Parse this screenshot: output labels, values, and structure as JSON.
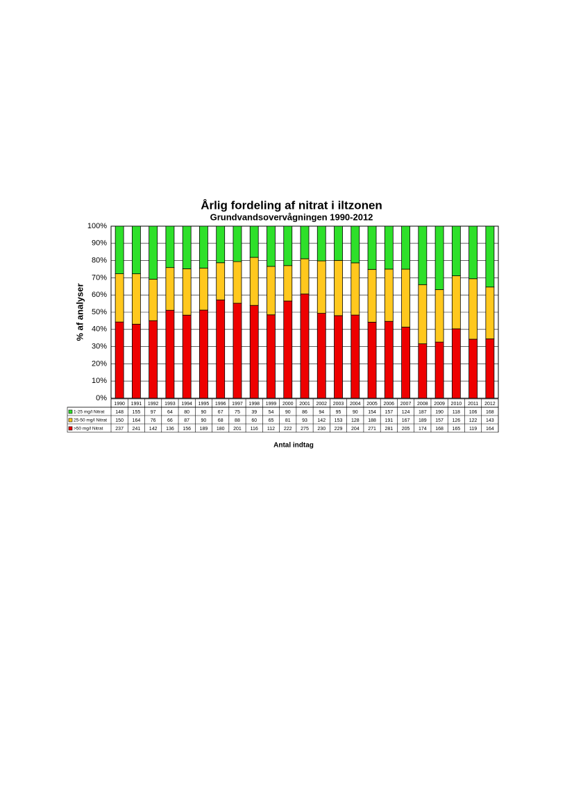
{
  "chart_data": {
    "type": "bar",
    "stacked": "percent",
    "title": "Årlig fordeling af nitrat i iltzonen",
    "subtitle": "Grundvandsovervågningen 1990-2012",
    "y_label": "% af analyser",
    "x_label": "Antal indtag",
    "categories": [
      "1990",
      "1991",
      "1992",
      "1993",
      "1994",
      "1995",
      "1996",
      "1997",
      "1998",
      "1999",
      "2000",
      "2001",
      "2002",
      "2003",
      "2004",
      "2005",
      "2006",
      "2007",
      "2008",
      "2009",
      "2010",
      "2011",
      "2012"
    ],
    "series": [
      {
        "name": "1-25 mg/l Nitrat",
        "color": "#2ee02a",
        "values": [
          148,
          155,
          97,
          64,
          80,
          90,
          67,
          75,
          39,
          54,
          90,
          86,
          94,
          95,
          90,
          154,
          157,
          124,
          187,
          190,
          118,
          106,
          168
        ]
      },
      {
        "name": "25-50 mg/l Nitrat",
        "color": "#ffc81e",
        "values": [
          150,
          164,
          76,
          66,
          87,
          90,
          68,
          88,
          60,
          65,
          81,
          93,
          142,
          153,
          128,
          188,
          191,
          167,
          189,
          157,
          126,
          122,
          143
        ]
      },
      {
        "name": ">50 mg/l Nitrat",
        "color": "#ee0000",
        "values": [
          237,
          241,
          142,
          136,
          156,
          189,
          180,
          201,
          116,
          112,
          222,
          275,
          230,
          229,
          204,
          271,
          281,
          205,
          174,
          168,
          165,
          119,
          164
        ]
      }
    ],
    "ylim": [
      0,
      100
    ],
    "yticks": [
      {
        "value": 0,
        "label": "0%"
      },
      {
        "value": 10,
        "label": "10%"
      },
      {
        "value": 20,
        "label": "20%"
      },
      {
        "value": 30,
        "label": "30%"
      },
      {
        "value": 40,
        "label": "40%"
      },
      {
        "value": 50,
        "label": "50%"
      },
      {
        "value": 60,
        "label": "60%"
      },
      {
        "value": 70,
        "label": "70%"
      },
      {
        "value": 80,
        "label": "80%"
      },
      {
        "value": 90,
        "label": "90%"
      },
      {
        "value": 100,
        "label": "100%"
      }
    ],
    "grid": true,
    "data_table": true
  }
}
